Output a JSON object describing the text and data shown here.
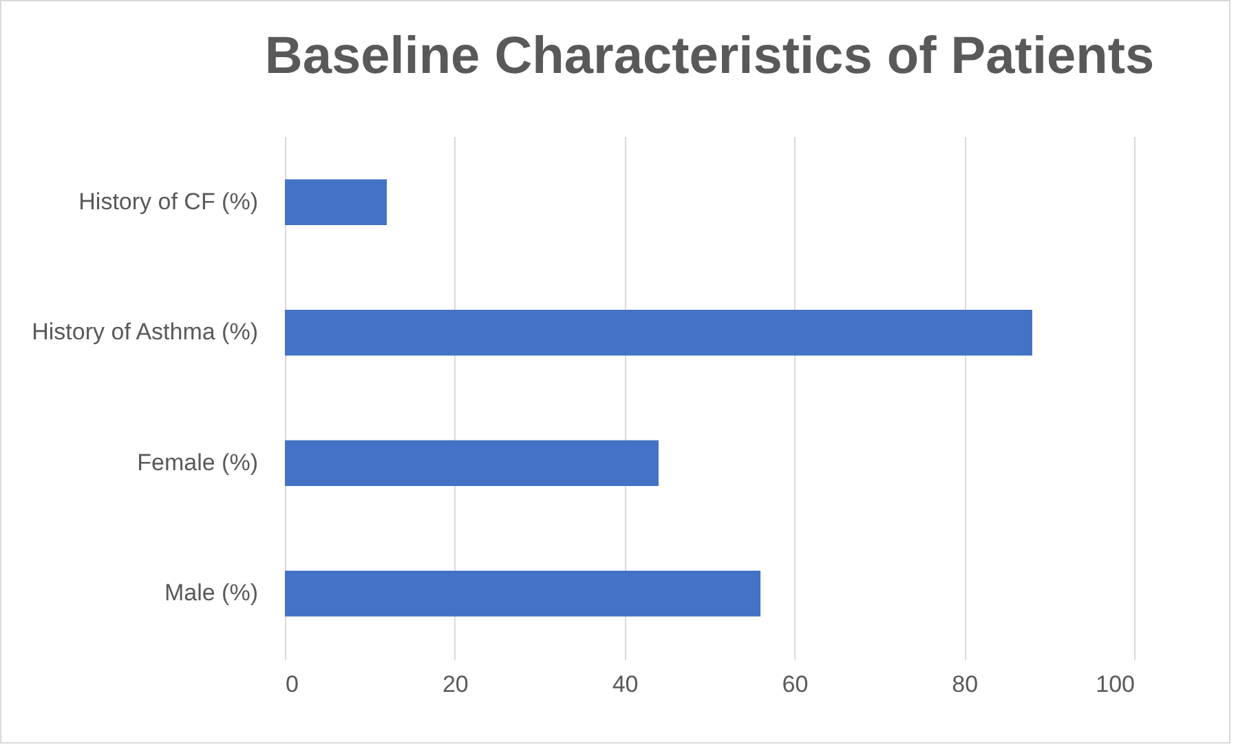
{
  "chart_data": {
    "type": "bar",
    "title": "Baseline Characteristics of Patients",
    "orientation": "horizontal",
    "categories": [
      "History of CF (%)",
      "History of Asthma (%)",
      "Female (%)",
      "Male (%)"
    ],
    "values": [
      12,
      88,
      44,
      56
    ],
    "color": "#4472c4",
    "xlim": [
      0,
      100
    ],
    "xticks": [
      0,
      20,
      40,
      60,
      80,
      100
    ],
    "grid": "x"
  }
}
